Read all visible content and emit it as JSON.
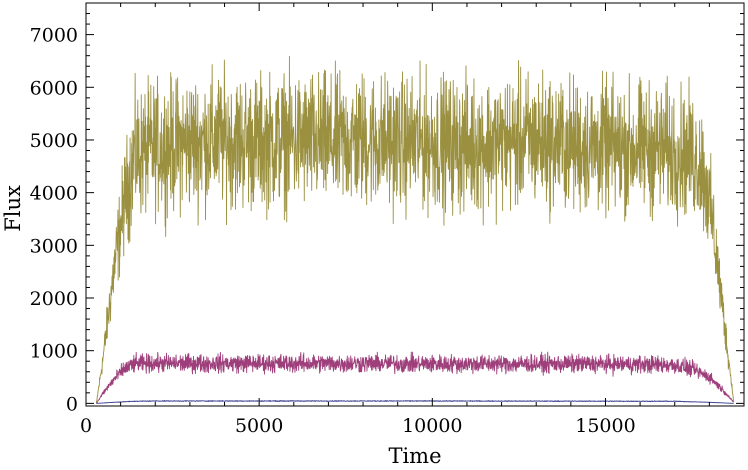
{
  "chart_data": {
    "type": "line",
    "title": "",
    "xlabel": "Time",
    "ylabel": "Flux",
    "xlim": [
      0,
      19000
    ],
    "ylim": [
      -50,
      7600
    ],
    "x_ticks": [
      0,
      5000,
      10000,
      15000
    ],
    "y_ticks": [
      0,
      1000,
      2000,
      3000,
      4000,
      5000,
      6000,
      7000
    ],
    "grid": false,
    "legend": "none",
    "series": [
      {
        "color": "#9a9040",
        "x": [
          300,
          500,
          800,
          1100,
          1400,
          2000,
          3000,
          4000,
          5000,
          6000,
          7000,
          8000,
          9000,
          10000,
          11000,
          12000,
          13000,
          14000,
          15000,
          16000,
          17000,
          17500,
          17800,
          18100,
          18400,
          18700
        ],
        "y": [
          0,
          900,
          2500,
          3800,
          4700,
          4850,
          4950,
          5000,
          4950,
          5000,
          4950,
          5000,
          4950,
          4950,
          4900,
          4950,
          5000,
          4900,
          4850,
          4850,
          4800,
          4700,
          4500,
          3400,
          1700,
          50
        ],
        "noise": 950
      },
      {
        "color": "#9e3f7c",
        "x": [
          300,
          500,
          800,
          1100,
          1400,
          2000,
          4000,
          6000,
          8000,
          10000,
          12000,
          14000,
          16000,
          17000,
          17500,
          18000,
          18400,
          18700
        ],
        "y": [
          0,
          200,
          450,
          650,
          750,
          760,
          760,
          760,
          760,
          750,
          750,
          750,
          740,
          730,
          650,
          500,
          250,
          20
        ],
        "noise": 130
      },
      {
        "color": "#3a3f8f",
        "x": [
          300,
          800,
          1400,
          2000,
          10000,
          17000,
          18000,
          18700
        ],
        "y": [
          0,
          20,
          40,
          45,
          45,
          40,
          20,
          0
        ],
        "noise": 6
      }
    ]
  }
}
